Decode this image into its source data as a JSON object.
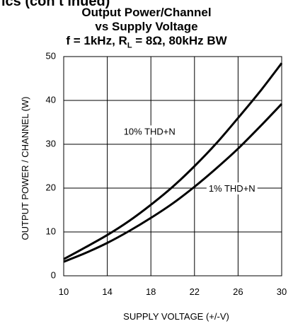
{
  "header": {
    "cutoff": "ics (con t inued)",
    "title_line1": "Output Power/Channel",
    "title_line2": "vs Supply Voltage",
    "title_line3_prefix": "f = 1kHz, R",
    "title_line3_sub": "L",
    "title_line3_suffix": " = 8Ω, 80kHz BW"
  },
  "chart_data": {
    "type": "line",
    "xlabel": "SUPPLY VOLTAGE (+/-V)",
    "ylabel": "OUTPUT POWER / CHANNEL (W)",
    "xlim": [
      10,
      30
    ],
    "ylim": [
      0,
      50
    ],
    "x_ticks": [
      "10",
      "14",
      "18",
      "22",
      "26",
      "30"
    ],
    "y_ticks": [
      "0",
      "10",
      "20",
      "30",
      "40",
      "50"
    ],
    "grid": true,
    "series": [
      {
        "name": "10% THD+N",
        "x": [
          10,
          12,
          14,
          16,
          18,
          20,
          22,
          24,
          26,
          28,
          30
        ],
        "y": [
          3.8,
          6.5,
          9.3,
          12.5,
          16.2,
          20.3,
          25.0,
          30.2,
          36.0,
          42.0,
          48.5
        ]
      },
      {
        "name": "1% THD+N",
        "x": [
          10,
          12,
          14,
          16,
          18,
          20,
          22,
          24,
          26,
          28,
          30
        ],
        "y": [
          3.2,
          5.2,
          7.5,
          10.2,
          13.2,
          16.5,
          20.3,
          24.5,
          29.0,
          34.0,
          39.2
        ]
      }
    ],
    "annotations": [
      "10% THD+N",
      "1% THD+N"
    ]
  }
}
